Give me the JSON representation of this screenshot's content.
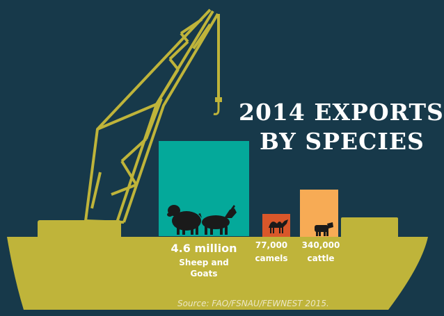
{
  "title": {
    "line1": "2014 EXPORTS",
    "line2": "BY SPECIES"
  },
  "colors": {
    "background": "#17394a",
    "ship": "#bfb43a",
    "sheep_goats": "#04a99a",
    "camels": "#d9572a",
    "cattle": "#f7ab55",
    "silhouette": "#1a1a1a"
  },
  "exports": [
    {
      "value": "4.6 million",
      "label_line1": "Sheep and",
      "label_line2": "Goats",
      "icons": [
        "sheep-icon",
        "goat-icon"
      ]
    },
    {
      "value": "77,000",
      "label_line1": "camels",
      "icons": [
        "camel-icon"
      ]
    },
    {
      "value": "340,000",
      "label_line1": "cattle",
      "icons": [
        "cow-icon"
      ]
    }
  ],
  "source": "Source: FAO/FSNAU/FEWNEST 2015."
}
